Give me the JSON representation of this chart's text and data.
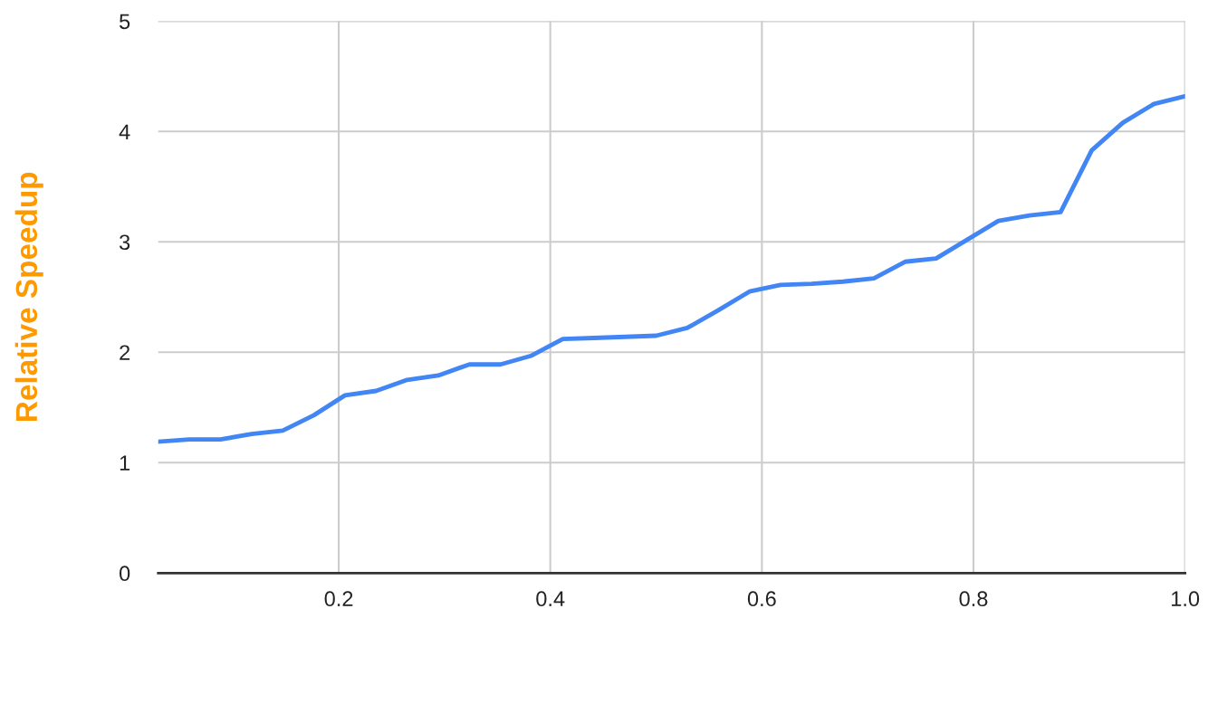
{
  "chart_data": {
    "type": "line",
    "ylabel": "Relative Speedup",
    "x": [
      0.0294,
      0.0588,
      0.0882,
      0.1176,
      0.1471,
      0.1765,
      0.2059,
      0.2353,
      0.2647,
      0.2941,
      0.3235,
      0.3529,
      0.3824,
      0.4118,
      0.4412,
      0.4706,
      0.5,
      0.5294,
      0.5588,
      0.5882,
      0.6176,
      0.6471,
      0.6765,
      0.7059,
      0.7353,
      0.7647,
      0.7941,
      0.8235,
      0.8529,
      0.8824,
      0.9118,
      0.9412,
      0.9706,
      1.0
    ],
    "series": [
      {
        "color": "#4285f4",
        "values": [
          1.19,
          1.21,
          1.21,
          1.26,
          1.29,
          1.43,
          1.61,
          1.65,
          1.75,
          1.79,
          1.89,
          1.89,
          1.97,
          2.12,
          2.13,
          2.14,
          2.15,
          2.22,
          2.38,
          2.55,
          2.61,
          2.62,
          2.64,
          2.67,
          2.82,
          2.85,
          3.02,
          3.19,
          3.24,
          3.27,
          3.83,
          4.08,
          4.25,
          4.32
        ]
      }
    ],
    "xlim": [
      0.0294,
      1.0
    ],
    "ylim": [
      0,
      5
    ],
    "xticks": [
      0.2,
      0.4,
      0.6,
      0.8,
      {
        "value": 1.0,
        "label": "1.0"
      }
    ],
    "yticks": [
      0,
      1,
      2,
      3,
      4,
      5
    ],
    "grid": true,
    "legend": false,
    "marker": "none",
    "line_style": "solid"
  }
}
